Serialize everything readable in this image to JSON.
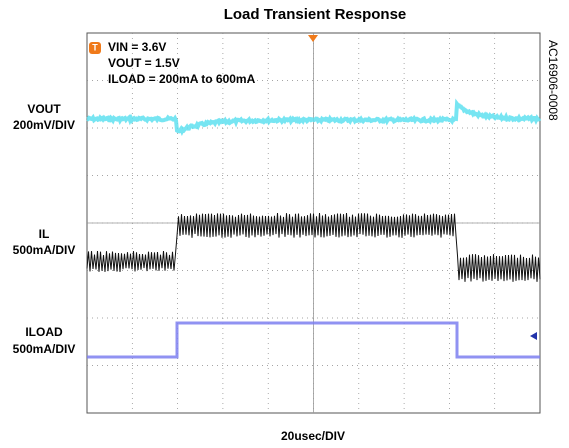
{
  "title": "Load Transient Response",
  "annotations": [
    "VIN = 3.6V",
    "VOUT = 1.5V",
    "ILOAD = 200mA to 600mA"
  ],
  "channels": [
    {
      "name": "VOUT",
      "scale": "200mV/DIV"
    },
    {
      "name": "IL",
      "scale": "500mA/DIV"
    },
    {
      "name": "ILOAD",
      "scale": "500mA/DIV"
    }
  ],
  "timebase": "20usec/DIV",
  "figure_id": "AC16906-0008"
}
